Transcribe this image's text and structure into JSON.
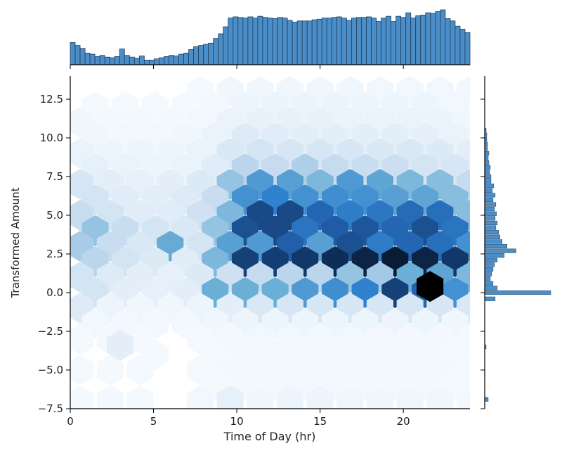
{
  "chart_data": {
    "type": "heatmap",
    "subtype": "jointplot-hexbin-with-marginal-histograms",
    "xlabel": "Time of Day (hr)",
    "ylabel": "Transformed Amount",
    "xlim": [
      0,
      24
    ],
    "ylim": [
      -7.5,
      14.0
    ],
    "x_ticks": [
      0,
      5,
      10,
      15,
      20
    ],
    "x_tick_labels": [
      "0",
      "5",
      "10",
      "15",
      "20"
    ],
    "y_ticks": [
      -7.5,
      -5.0,
      -2.5,
      0.0,
      2.5,
      5.0,
      7.5,
      10.0,
      12.5
    ],
    "y_tick_labels": [
      "−7.5",
      "−5.0",
      "−2.5",
      "0.0",
      "2.5",
      "5.0",
      "7.5",
      "10.0",
      "12.5"
    ],
    "hexbin": {
      "x_centers": [
        0.6,
        2.4,
        4.2,
        6.0,
        7.8,
        9.6,
        11.4,
        13.2,
        15.0,
        16.8,
        18.6,
        20.4,
        22.2,
        24.0
      ],
      "x_centers_offset": [
        1.5,
        3.3,
        5.1,
        6.9,
        8.7,
        10.5,
        12.3,
        14.1,
        15.9,
        17.7,
        19.5,
        21.3,
        23.1
      ],
      "rows": [
        {
          "y": 13.0,
          "offset": false,
          "v": [
            0,
            0,
            0,
            0,
            0.02,
            0.05,
            0.05,
            0.05,
            0.05,
            0.05,
            0.04,
            0.04,
            0.04,
            0.03
          ]
        },
        {
          "y": 12.0,
          "offset": true,
          "v": [
            0.02,
            0.02,
            0.02,
            0.02,
            0.03,
            0.06,
            0.07,
            0.07,
            0.07,
            0.06,
            0.06,
            0.06,
            0.04
          ]
        },
        {
          "y": 11.0,
          "offset": false,
          "v": [
            0.05,
            0.03,
            0.03,
            0.03,
            0.04,
            0.08,
            0.09,
            0.09,
            0.09,
            0.08,
            0.08,
            0.08,
            0.07,
            0.05
          ]
        },
        {
          "y": 10.0,
          "offset": true,
          "v": [
            0.05,
            0.04,
            0.04,
            0.05,
            0.08,
            0.15,
            0.14,
            0.12,
            0.12,
            0.12,
            0.12,
            0.11,
            0.08
          ]
        },
        {
          "y": 9.0,
          "offset": false,
          "v": [
            0.08,
            0.06,
            0.06,
            0.06,
            0.08,
            0.18,
            0.22,
            0.2,
            0.2,
            0.2,
            0.18,
            0.18,
            0.16,
            0.12
          ]
        },
        {
          "y": 8.0,
          "offset": true,
          "v": [
            0.1,
            0.08,
            0.06,
            0.08,
            0.14,
            0.32,
            0.3,
            0.34,
            0.3,
            0.28,
            0.26,
            0.22,
            0.2
          ]
        },
        {
          "y": 7.0,
          "offset": false,
          "v": [
            0.2,
            0.12,
            0.1,
            0.12,
            0.16,
            0.38,
            0.52,
            0.5,
            0.42,
            0.52,
            0.48,
            0.42,
            0.4,
            0.3
          ]
        },
        {
          "y": 6.0,
          "offset": true,
          "v": [
            0.22,
            0.14,
            0.12,
            0.15,
            0.28,
            0.55,
            0.6,
            0.55,
            0.56,
            0.55,
            0.5,
            0.48,
            0.4
          ]
        },
        {
          "y": 5.0,
          "offset": false,
          "v": [
            0.28,
            0.22,
            0.14,
            0.14,
            0.24,
            0.42,
            0.82,
            0.82,
            0.72,
            0.62,
            0.65,
            0.7,
            0.68,
            0.4
          ]
        },
        {
          "y": 4.0,
          "offset": true,
          "v": [
            0.38,
            0.28,
            0.22,
            0.18,
            0.38,
            0.8,
            0.82,
            0.66,
            0.76,
            0.78,
            0.72,
            0.8,
            0.66
          ]
        },
        {
          "y": 3.0,
          "offset": false,
          "v": [
            0.35,
            0.28,
            0.18,
            0.46,
            0.22,
            0.5,
            0.52,
            0.75,
            0.5,
            0.8,
            0.62,
            0.72,
            0.68,
            0.55
          ]
        },
        {
          "y": 2.0,
          "offset": true,
          "v": [
            0.32,
            0.22,
            0.16,
            0.14,
            0.42,
            0.85,
            0.86,
            0.88,
            0.9,
            0.92,
            0.94,
            0.92,
            0.88
          ]
        },
        {
          "y": 1.0,
          "offset": false,
          "v": [
            0.22,
            0.15,
            0.12,
            0.1,
            0.16,
            0.25,
            0.3,
            0.32,
            0.32,
            0.38,
            0.36,
            0.45,
            0.48,
            0.42
          ]
        },
        {
          "y": 0.0,
          "offset": true,
          "v": [
            0.22,
            0.12,
            0.1,
            0.12,
            0.45,
            0.45,
            0.45,
            0.52,
            0.56,
            0.6,
            0.85,
            0.72,
            0.55
          ]
        },
        {
          "y": -1.0,
          "offset": false,
          "v": [
            0.15,
            0.06,
            0.05,
            0.05,
            0.06,
            0.12,
            0.18,
            0.2,
            0.2,
            0.2,
            0.2,
            0.2,
            0.2,
            0.18
          ]
        },
        {
          "y": -2.0,
          "offset": true,
          "v": [
            0.04,
            0.03,
            0.03,
            0.03,
            0.05,
            0.06,
            0.06,
            0.06,
            0.06,
            0.06,
            0.06,
            0.06,
            0.05
          ]
        },
        {
          "y": -3.0,
          "offset": false,
          "v": [
            0.02,
            0.03,
            0.02,
            0,
            0.02,
            0.03,
            0.04,
            0.04,
            0.04,
            0.04,
            0.03,
            0.03,
            0.03,
            0.02
          ]
        },
        {
          "y": -4.0,
          "offset": true,
          "v": [
            0,
            0,
            0.02,
            0,
            0.02,
            0.03,
            0.04,
            0.04,
            0.04,
            0.04,
            0.03,
            0.03,
            0.02
          ]
        },
        {
          "y": -5.0,
          "offset": false,
          "v": [
            0.02,
            0.02,
            0.02,
            0,
            0.02,
            0.03,
            0.03,
            0.04,
            0.04,
            0.03,
            0.03,
            0.03,
            0.03,
            0.02
          ]
        },
        {
          "y": -6.0,
          "offset": true,
          "v": [
            0,
            0,
            0,
            0,
            0.02,
            0.03,
            0.03,
            0.03,
            0.03,
            0.03,
            0.03,
            0.03,
            0.02
          ]
        },
        {
          "y": -7.0,
          "offset": false,
          "v": [
            0.02,
            0.03,
            0.02,
            0,
            0.04,
            0.06,
            0.05,
            0.06,
            0.06,
            0.05,
            0.05,
            0.05,
            0.05,
            0.03
          ]
        }
      ],
      "special": [
        {
          "x": 3.0,
          "y": -3.4,
          "value": 0.12
        },
        {
          "x": 21.6,
          "y": 0.4,
          "value": 1.0
        },
        {
          "x": 9.6,
          "y": -7.0,
          "value": 0.1
        }
      ]
    },
    "marginal_x": {
      "bin_start": 0,
      "bin_width": 0.5,
      "counts": [
        38,
        33,
        28,
        20,
        18,
        14,
        16,
        13,
        12,
        14,
        27,
        16,
        13,
        11,
        15,
        8,
        8,
        10,
        12,
        14,
        16,
        15,
        18,
        20,
        26,
        31,
        33,
        35,
        37,
        45,
        53,
        65,
        80,
        82,
        81,
        80,
        82,
        80,
        83,
        81,
        80,
        79,
        81,
        80,
        76,
        73,
        75,
        75,
        75,
        77,
        78,
        80,
        80,
        81,
        82,
        80,
        76,
        80,
        81,
        81,
        82,
        80,
        74,
        80,
        83,
        74,
        83,
        81,
        89,
        80,
        84,
        85,
        89,
        88,
        91,
        94,
        79,
        75,
        66,
        61,
        55
      ]
    },
    "marginal_y": {
      "bin_start": -7.5,
      "bin_width": 0.5,
      "counts": [
        3,
        0,
        0,
        0,
        0,
        0,
        0,
        0,
        0,
        0,
        0,
        0,
        0,
        0,
        0,
        0,
        0,
        0,
        0,
        0,
        0,
        0,
        0,
        0,
        0,
        0,
        0,
        0,
        0,
        0,
        0,
        0,
        0,
        0,
        0,
        0,
        0,
        0,
        0,
        0,
        0,
        0,
        0,
        0,
        0,
        0,
        0,
        0,
        0,
        0,
        0,
        0,
        0,
        0,
        0,
        0,
        0,
        0,
        0,
        0,
        0,
        0,
        0,
        0,
        0,
        0,
        0,
        0,
        0,
        0,
        0,
        0,
        0,
        0,
        0,
        0,
        0,
        0,
        0,
        0,
        0,
        0,
        0,
        0,
        0,
        0,
        0,
        0,
        0,
        0,
        0,
        0,
        0,
        0,
        0,
        0,
        0,
        0,
        0,
        0,
        0
      ],
      "sample_profile": [
        {
          "y": -6.9,
          "count": 5
        },
        {
          "y": -3.5,
          "count": 2
        },
        {
          "y": -0.4,
          "count": 15
        },
        {
          "y": 0.0,
          "count": 95
        },
        {
          "y": 0.3,
          "count": 18
        },
        {
          "y": 0.6,
          "count": 12
        },
        {
          "y": 0.9,
          "count": 8
        },
        {
          "y": 1.2,
          "count": 10
        },
        {
          "y": 1.5,
          "count": 12
        },
        {
          "y": 1.8,
          "count": 14
        },
        {
          "y": 2.1,
          "count": 18
        },
        {
          "y": 2.4,
          "count": 28
        },
        {
          "y": 2.7,
          "count": 45
        },
        {
          "y": 3.0,
          "count": 32
        },
        {
          "y": 3.3,
          "count": 25
        },
        {
          "y": 3.6,
          "count": 22
        },
        {
          "y": 3.9,
          "count": 20
        },
        {
          "y": 4.2,
          "count": 16
        },
        {
          "y": 4.5,
          "count": 18
        },
        {
          "y": 4.8,
          "count": 15
        },
        {
          "y": 5.1,
          "count": 17
        },
        {
          "y": 5.4,
          "count": 14
        },
        {
          "y": 5.7,
          "count": 16
        },
        {
          "y": 6.0,
          "count": 12
        },
        {
          "y": 6.3,
          "count": 15
        },
        {
          "y": 6.6,
          "count": 11
        },
        {
          "y": 6.9,
          "count": 13
        },
        {
          "y": 7.2,
          "count": 9
        },
        {
          "y": 7.5,
          "count": 9
        },
        {
          "y": 7.8,
          "count": 7
        },
        {
          "y": 8.1,
          "count": 8
        },
        {
          "y": 8.4,
          "count": 6
        },
        {
          "y": 8.7,
          "count": 5
        },
        {
          "y": 9.0,
          "count": 6
        },
        {
          "y": 9.3,
          "count": 4
        },
        {
          "y": 9.6,
          "count": 4
        },
        {
          "y": 9.9,
          "count": 3
        },
        {
          "y": 10.2,
          "count": 3
        },
        {
          "y": 10.5,
          "count": 2
        }
      ]
    },
    "colormap": "Blues",
    "colors": {
      "hist_fill": "#4b8dc7",
      "hist_edge": "#1f3f5f",
      "hex_max": "#000000"
    },
    "grid": false,
    "legend": "none"
  }
}
